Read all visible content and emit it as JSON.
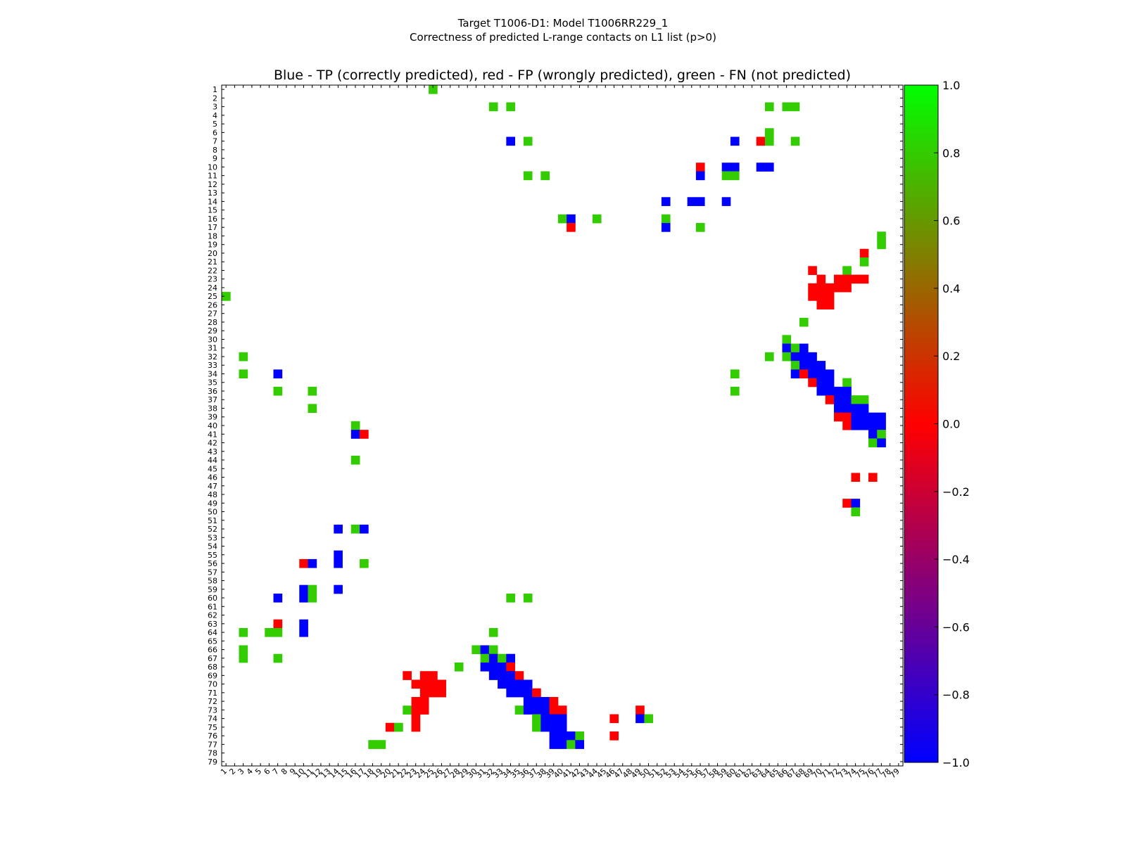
{
  "header": {
    "title_line1": "Target T1006-D1: Model T1006RR229_1",
    "title_line2": "Correctness of predicted L-range contacts on L1 list (p>0)"
  },
  "chart_data": {
    "type": "heatmap",
    "title": "Blue - TP (correctly predicted), red - FP (wrongly predicted), green - FN (not predicted)",
    "xlabel": "",
    "ylabel": "",
    "n": 79,
    "ticks": [
      1,
      2,
      3,
      4,
      5,
      6,
      7,
      8,
      9,
      10,
      11,
      12,
      13,
      14,
      15,
      16,
      17,
      18,
      19,
      20,
      21,
      22,
      23,
      24,
      25,
      26,
      27,
      28,
      29,
      30,
      31,
      32,
      33,
      34,
      35,
      36,
      37,
      38,
      39,
      40,
      41,
      42,
      43,
      44,
      45,
      46,
      47,
      48,
      49,
      50,
      51,
      52,
      53,
      54,
      55,
      56,
      57,
      58,
      59,
      60,
      61,
      62,
      63,
      64,
      65,
      66,
      67,
      68,
      69,
      70,
      71,
      72,
      73,
      74,
      75,
      76,
      77,
      78,
      79
    ],
    "colorbar": {
      "min": -1.0,
      "max": 1.0,
      "tick_labels": [
        "1.0",
        "0.8",
        "0.6",
        "0.4",
        "0.2",
        "0.0",
        "−0.2",
        "−0.4",
        "−0.6",
        "−0.8",
        "−1.0"
      ],
      "tick_values": [
        1.0,
        0.8,
        0.6,
        0.4,
        0.2,
        0.0,
        -0.2,
        -0.4,
        -0.6,
        -0.8,
        -1.0
      ],
      "stops": [
        {
          "value": -1.0,
          "color": "#0000ff"
        },
        {
          "value": 0.0,
          "color": "#ff0000"
        },
        {
          "value": 1.0,
          "color": "#00ff00"
        }
      ]
    },
    "categories": {
      "TP": {
        "label": "TP (correctly predicted)",
        "value": -1.0,
        "color": "#0000ff"
      },
      "FP": {
        "label": "FP (wrongly predicted)",
        "value": 0.0,
        "color": "#ff0000"
      },
      "FN": {
        "label": "FN (not predicted)",
        "value": 0.8,
        "color": "#33cc00"
      }
    },
    "cells": [
      {
        "row": 1,
        "col": 25,
        "kind": "FN"
      },
      {
        "row": 3,
        "col": 32,
        "kind": "FN"
      },
      {
        "row": 3,
        "col": 34,
        "kind": "FN"
      },
      {
        "row": 3,
        "col": 64,
        "kind": "FN"
      },
      {
        "row": 3,
        "col": 66,
        "kind": "FN"
      },
      {
        "row": 3,
        "col": 67,
        "kind": "FN"
      },
      {
        "row": 6,
        "col": 64,
        "kind": "FN"
      },
      {
        "row": 7,
        "col": 34,
        "kind": "TP"
      },
      {
        "row": 7,
        "col": 36,
        "kind": "FN"
      },
      {
        "row": 7,
        "col": 60,
        "kind": "TP"
      },
      {
        "row": 7,
        "col": 63,
        "kind": "FP"
      },
      {
        "row": 7,
        "col": 64,
        "kind": "FN"
      },
      {
        "row": 7,
        "col": 67,
        "kind": "FN"
      },
      {
        "row": 10,
        "col": 56,
        "kind": "FP"
      },
      {
        "row": 10,
        "col": 59,
        "kind": "TP"
      },
      {
        "row": 10,
        "col": 60,
        "kind": "TP"
      },
      {
        "row": 10,
        "col": 63,
        "kind": "TP"
      },
      {
        "row": 10,
        "col": 64,
        "kind": "TP"
      },
      {
        "row": 11,
        "col": 36,
        "kind": "FN"
      },
      {
        "row": 11,
        "col": 38,
        "kind": "FN"
      },
      {
        "row": 11,
        "col": 56,
        "kind": "TP"
      },
      {
        "row": 11,
        "col": 59,
        "kind": "FN"
      },
      {
        "row": 11,
        "col": 60,
        "kind": "FN"
      },
      {
        "row": 14,
        "col": 52,
        "kind": "TP"
      },
      {
        "row": 14,
        "col": 55,
        "kind": "TP"
      },
      {
        "row": 14,
        "col": 56,
        "kind": "TP"
      },
      {
        "row": 14,
        "col": 59,
        "kind": "TP"
      },
      {
        "row": 16,
        "col": 40,
        "kind": "FN"
      },
      {
        "row": 16,
        "col": 41,
        "kind": "TP"
      },
      {
        "row": 16,
        "col": 44,
        "kind": "FN"
      },
      {
        "row": 16,
        "col": 52,
        "kind": "FN"
      },
      {
        "row": 17,
        "col": 41,
        "kind": "FP"
      },
      {
        "row": 17,
        "col": 52,
        "kind": "TP"
      },
      {
        "row": 17,
        "col": 56,
        "kind": "FN"
      },
      {
        "row": 18,
        "col": 77,
        "kind": "FN"
      },
      {
        "row": 19,
        "col": 77,
        "kind": "FN"
      },
      {
        "row": 20,
        "col": 75,
        "kind": "FP"
      },
      {
        "row": 21,
        "col": 75,
        "kind": "FN"
      },
      {
        "row": 22,
        "col": 69,
        "kind": "FP"
      },
      {
        "row": 22,
        "col": 73,
        "kind": "FN"
      },
      {
        "row": 23,
        "col": 70,
        "kind": "FP"
      },
      {
        "row": 23,
        "col": 72,
        "kind": "FP"
      },
      {
        "row": 23,
        "col": 73,
        "kind": "FP"
      },
      {
        "row": 23,
        "col": 74,
        "kind": "FP"
      },
      {
        "row": 23,
        "col": 75,
        "kind": "FP"
      },
      {
        "row": 24,
        "col": 69,
        "kind": "FP"
      },
      {
        "row": 24,
        "col": 70,
        "kind": "FP"
      },
      {
        "row": 24,
        "col": 71,
        "kind": "FP"
      },
      {
        "row": 24,
        "col": 72,
        "kind": "FP"
      },
      {
        "row": 24,
        "col": 73,
        "kind": "FP"
      },
      {
        "row": 25,
        "col": 1,
        "kind": "FN"
      },
      {
        "row": 25,
        "col": 69,
        "kind": "FP"
      },
      {
        "row": 25,
        "col": 70,
        "kind": "FP"
      },
      {
        "row": 25,
        "col": 71,
        "kind": "FP"
      },
      {
        "row": 26,
        "col": 70,
        "kind": "FP"
      },
      {
        "row": 26,
        "col": 71,
        "kind": "FP"
      },
      {
        "row": 28,
        "col": 68,
        "kind": "FN"
      },
      {
        "row": 30,
        "col": 66,
        "kind": "FN"
      },
      {
        "row": 31,
        "col": 66,
        "kind": "TP"
      },
      {
        "row": 31,
        "col": 67,
        "kind": "FN"
      },
      {
        "row": 31,
        "col": 68,
        "kind": "TP"
      },
      {
        "row": 32,
        "col": 3,
        "kind": "FN"
      },
      {
        "row": 32,
        "col": 64,
        "kind": "FN"
      },
      {
        "row": 32,
        "col": 66,
        "kind": "FN"
      },
      {
        "row": 32,
        "col": 67,
        "kind": "TP"
      },
      {
        "row": 32,
        "col": 68,
        "kind": "TP"
      },
      {
        "row": 32,
        "col": 69,
        "kind": "TP"
      },
      {
        "row": 33,
        "col": 67,
        "kind": "FN"
      },
      {
        "row": 33,
        "col": 68,
        "kind": "TP"
      },
      {
        "row": 33,
        "col": 69,
        "kind": "TP"
      },
      {
        "row": 33,
        "col": 70,
        "kind": "TP"
      },
      {
        "row": 34,
        "col": 3,
        "kind": "FN"
      },
      {
        "row": 34,
        "col": 7,
        "kind": "TP"
      },
      {
        "row": 34,
        "col": 60,
        "kind": "FN"
      },
      {
        "row": 34,
        "col": 67,
        "kind": "TP"
      },
      {
        "row": 34,
        "col": 68,
        "kind": "FP"
      },
      {
        "row": 34,
        "col": 69,
        "kind": "TP"
      },
      {
        "row": 34,
        "col": 70,
        "kind": "TP"
      },
      {
        "row": 34,
        "col": 71,
        "kind": "TP"
      },
      {
        "row": 35,
        "col": 69,
        "kind": "FP"
      },
      {
        "row": 35,
        "col": 70,
        "kind": "TP"
      },
      {
        "row": 35,
        "col": 71,
        "kind": "TP"
      },
      {
        "row": 35,
        "col": 73,
        "kind": "FN"
      },
      {
        "row": 36,
        "col": 7,
        "kind": "FN"
      },
      {
        "row": 36,
        "col": 11,
        "kind": "FN"
      },
      {
        "row": 36,
        "col": 60,
        "kind": "FN"
      },
      {
        "row": 36,
        "col": 70,
        "kind": "TP"
      },
      {
        "row": 36,
        "col": 71,
        "kind": "TP"
      },
      {
        "row": 36,
        "col": 72,
        "kind": "TP"
      },
      {
        "row": 36,
        "col": 73,
        "kind": "TP"
      },
      {
        "row": 37,
        "col": 71,
        "kind": "FP"
      },
      {
        "row": 37,
        "col": 72,
        "kind": "TP"
      },
      {
        "row": 37,
        "col": 73,
        "kind": "TP"
      },
      {
        "row": 37,
        "col": 74,
        "kind": "FN"
      },
      {
        "row": 37,
        "col": 75,
        "kind": "FN"
      },
      {
        "row": 38,
        "col": 11,
        "kind": "FN"
      },
      {
        "row": 38,
        "col": 72,
        "kind": "TP"
      },
      {
        "row": 38,
        "col": 73,
        "kind": "TP"
      },
      {
        "row": 38,
        "col": 74,
        "kind": "TP"
      },
      {
        "row": 38,
        "col": 75,
        "kind": "TP"
      },
      {
        "row": 39,
        "col": 72,
        "kind": "FP"
      },
      {
        "row": 39,
        "col": 73,
        "kind": "FP"
      },
      {
        "row": 39,
        "col": 74,
        "kind": "TP"
      },
      {
        "row": 39,
        "col": 75,
        "kind": "TP"
      },
      {
        "row": 39,
        "col": 76,
        "kind": "TP"
      },
      {
        "row": 39,
        "col": 77,
        "kind": "TP"
      },
      {
        "row": 40,
        "col": 16,
        "kind": "FN"
      },
      {
        "row": 40,
        "col": 73,
        "kind": "FP"
      },
      {
        "row": 40,
        "col": 74,
        "kind": "TP"
      },
      {
        "row": 40,
        "col": 75,
        "kind": "TP"
      },
      {
        "row": 40,
        "col": 76,
        "kind": "TP"
      },
      {
        "row": 40,
        "col": 77,
        "kind": "TP"
      },
      {
        "row": 41,
        "col": 16,
        "kind": "TP"
      },
      {
        "row": 41,
        "col": 17,
        "kind": "FP"
      },
      {
        "row": 41,
        "col": 76,
        "kind": "TP"
      },
      {
        "row": 41,
        "col": 77,
        "kind": "FN"
      },
      {
        "row": 42,
        "col": 76,
        "kind": "FN"
      },
      {
        "row": 42,
        "col": 77,
        "kind": "TP"
      },
      {
        "row": 44,
        "col": 16,
        "kind": "FN"
      },
      {
        "row": 46,
        "col": 74,
        "kind": "FP"
      },
      {
        "row": 46,
        "col": 76,
        "kind": "FP"
      },
      {
        "row": 49,
        "col": 73,
        "kind": "FP"
      },
      {
        "row": 49,
        "col": 74,
        "kind": "TP"
      },
      {
        "row": 50,
        "col": 74,
        "kind": "FN"
      },
      {
        "row": 52,
        "col": 14,
        "kind": "TP"
      },
      {
        "row": 52,
        "col": 16,
        "kind": "FN"
      },
      {
        "row": 52,
        "col": 17,
        "kind": "TP"
      },
      {
        "row": 55,
        "col": 14,
        "kind": "TP"
      },
      {
        "row": 56,
        "col": 10,
        "kind": "FP"
      },
      {
        "row": 56,
        "col": 11,
        "kind": "TP"
      },
      {
        "row": 56,
        "col": 14,
        "kind": "TP"
      },
      {
        "row": 56,
        "col": 17,
        "kind": "FN"
      },
      {
        "row": 59,
        "col": 10,
        "kind": "TP"
      },
      {
        "row": 59,
        "col": 11,
        "kind": "FN"
      },
      {
        "row": 59,
        "col": 14,
        "kind": "TP"
      },
      {
        "row": 60,
        "col": 7,
        "kind": "TP"
      },
      {
        "row": 60,
        "col": 10,
        "kind": "TP"
      },
      {
        "row": 60,
        "col": 11,
        "kind": "FN"
      },
      {
        "row": 60,
        "col": 34,
        "kind": "FN"
      },
      {
        "row": 60,
        "col": 36,
        "kind": "FN"
      },
      {
        "row": 63,
        "col": 7,
        "kind": "FP"
      },
      {
        "row": 63,
        "col": 10,
        "kind": "TP"
      },
      {
        "row": 64,
        "col": 3,
        "kind": "FN"
      },
      {
        "row": 64,
        "col": 6,
        "kind": "FN"
      },
      {
        "row": 64,
        "col": 7,
        "kind": "FN"
      },
      {
        "row": 64,
        "col": 10,
        "kind": "TP"
      },
      {
        "row": 64,
        "col": 32,
        "kind": "FN"
      },
      {
        "row": 66,
        "col": 3,
        "kind": "FN"
      },
      {
        "row": 66,
        "col": 30,
        "kind": "FN"
      },
      {
        "row": 66,
        "col": 31,
        "kind": "TP"
      },
      {
        "row": 66,
        "col": 32,
        "kind": "FN"
      },
      {
        "row": 67,
        "col": 3,
        "kind": "FN"
      },
      {
        "row": 67,
        "col": 7,
        "kind": "FN"
      },
      {
        "row": 67,
        "col": 31,
        "kind": "FN"
      },
      {
        "row": 67,
        "col": 32,
        "kind": "TP"
      },
      {
        "row": 67,
        "col": 33,
        "kind": "FN"
      },
      {
        "row": 67,
        "col": 34,
        "kind": "TP"
      },
      {
        "row": 68,
        "col": 28,
        "kind": "FN"
      },
      {
        "row": 68,
        "col": 31,
        "kind": "TP"
      },
      {
        "row": 68,
        "col": 32,
        "kind": "TP"
      },
      {
        "row": 68,
        "col": 33,
        "kind": "TP"
      },
      {
        "row": 68,
        "col": 34,
        "kind": "FP"
      },
      {
        "row": 69,
        "col": 22,
        "kind": "FP"
      },
      {
        "row": 69,
        "col": 24,
        "kind": "FP"
      },
      {
        "row": 69,
        "col": 25,
        "kind": "FP"
      },
      {
        "row": 69,
        "col": 32,
        "kind": "TP"
      },
      {
        "row": 69,
        "col": 33,
        "kind": "TP"
      },
      {
        "row": 69,
        "col": 34,
        "kind": "TP"
      },
      {
        "row": 69,
        "col": 35,
        "kind": "FP"
      },
      {
        "row": 70,
        "col": 23,
        "kind": "FP"
      },
      {
        "row": 70,
        "col": 24,
        "kind": "FP"
      },
      {
        "row": 70,
        "col": 25,
        "kind": "FP"
      },
      {
        "row": 70,
        "col": 26,
        "kind": "FP"
      },
      {
        "row": 70,
        "col": 33,
        "kind": "TP"
      },
      {
        "row": 70,
        "col": 34,
        "kind": "TP"
      },
      {
        "row": 70,
        "col": 35,
        "kind": "TP"
      },
      {
        "row": 70,
        "col": 36,
        "kind": "TP"
      },
      {
        "row": 71,
        "col": 24,
        "kind": "FP"
      },
      {
        "row": 71,
        "col": 25,
        "kind": "FP"
      },
      {
        "row": 71,
        "col": 26,
        "kind": "FP"
      },
      {
        "row": 71,
        "col": 34,
        "kind": "TP"
      },
      {
        "row": 71,
        "col": 35,
        "kind": "TP"
      },
      {
        "row": 71,
        "col": 36,
        "kind": "TP"
      },
      {
        "row": 71,
        "col": 37,
        "kind": "FP"
      },
      {
        "row": 72,
        "col": 23,
        "kind": "FP"
      },
      {
        "row": 72,
        "col": 24,
        "kind": "FP"
      },
      {
        "row": 72,
        "col": 36,
        "kind": "TP"
      },
      {
        "row": 72,
        "col": 37,
        "kind": "TP"
      },
      {
        "row": 72,
        "col": 38,
        "kind": "TP"
      },
      {
        "row": 72,
        "col": 39,
        "kind": "FP"
      },
      {
        "row": 73,
        "col": 22,
        "kind": "FN"
      },
      {
        "row": 73,
        "col": 23,
        "kind": "FP"
      },
      {
        "row": 73,
        "col": 24,
        "kind": "FP"
      },
      {
        "row": 73,
        "col": 35,
        "kind": "FN"
      },
      {
        "row": 73,
        "col": 36,
        "kind": "TP"
      },
      {
        "row": 73,
        "col": 37,
        "kind": "TP"
      },
      {
        "row": 73,
        "col": 38,
        "kind": "TP"
      },
      {
        "row": 73,
        "col": 39,
        "kind": "FP"
      },
      {
        "row": 73,
        "col": 40,
        "kind": "FP"
      },
      {
        "row": 73,
        "col": 49,
        "kind": "FP"
      },
      {
        "row": 74,
        "col": 23,
        "kind": "FP"
      },
      {
        "row": 74,
        "col": 37,
        "kind": "FN"
      },
      {
        "row": 74,
        "col": 38,
        "kind": "TP"
      },
      {
        "row": 74,
        "col": 39,
        "kind": "TP"
      },
      {
        "row": 74,
        "col": 40,
        "kind": "TP"
      },
      {
        "row": 74,
        "col": 46,
        "kind": "FP"
      },
      {
        "row": 74,
        "col": 49,
        "kind": "TP"
      },
      {
        "row": 74,
        "col": 50,
        "kind": "FN"
      },
      {
        "row": 75,
        "col": 20,
        "kind": "FP"
      },
      {
        "row": 75,
        "col": 21,
        "kind": "FN"
      },
      {
        "row": 75,
        "col": 23,
        "kind": "FP"
      },
      {
        "row": 75,
        "col": 37,
        "kind": "FN"
      },
      {
        "row": 75,
        "col": 38,
        "kind": "TP"
      },
      {
        "row": 75,
        "col": 39,
        "kind": "TP"
      },
      {
        "row": 75,
        "col": 40,
        "kind": "TP"
      },
      {
        "row": 76,
        "col": 39,
        "kind": "TP"
      },
      {
        "row": 76,
        "col": 40,
        "kind": "TP"
      },
      {
        "row": 76,
        "col": 41,
        "kind": "TP"
      },
      {
        "row": 76,
        "col": 42,
        "kind": "FN"
      },
      {
        "row": 76,
        "col": 46,
        "kind": "FP"
      },
      {
        "row": 77,
        "col": 18,
        "kind": "FN"
      },
      {
        "row": 77,
        "col": 19,
        "kind": "FN"
      },
      {
        "row": 77,
        "col": 39,
        "kind": "TP"
      },
      {
        "row": 77,
        "col": 40,
        "kind": "TP"
      },
      {
        "row": 77,
        "col": 41,
        "kind": "FN"
      },
      {
        "row": 77,
        "col": 42,
        "kind": "TP"
      }
    ]
  }
}
